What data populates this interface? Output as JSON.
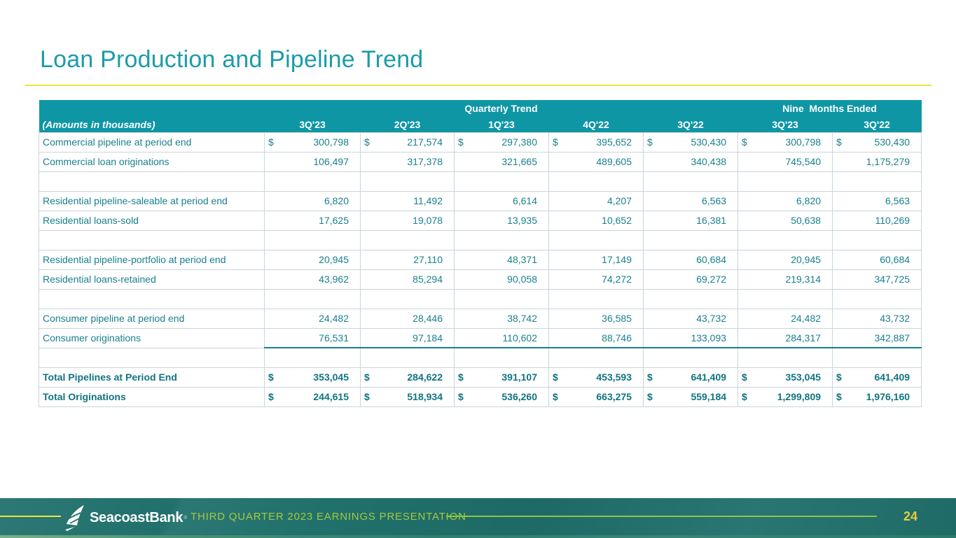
{
  "slide": {
    "title": "Loan Production and Pipeline Trend",
    "footer_caption": "THIRD QUARTER 2023 EARNINGS PRESENTATION",
    "logo_text": "SeacoastBank",
    "logo_reg_mark": "®",
    "page_number": "24"
  },
  "colors": {
    "accent_teal": "#1B9CA9",
    "header_bg": "#0E96A5",
    "table_text": "#19808E",
    "table_border": "#C9D5DB",
    "rule_yellow": "#E6E73B",
    "footer_bg": "#20706C",
    "footer_line_green": "#8FC63F",
    "caption_green": "#A5C93C",
    "page_number_yellow": "#E7CE3E"
  },
  "table": {
    "note": "(Amounts in thousands)",
    "group_headers": [
      {
        "label": "Quarterly Trend",
        "span": 5
      },
      {
        "label": "Nine  Months Ended",
        "span": 2
      }
    ],
    "columns": [
      "3Q'23",
      "2Q'23",
      "1Q'23",
      "4Q'22",
      "3Q'22",
      "3Q'23",
      "3Q'22"
    ],
    "rows": [
      {
        "label": "Commercial pipeline at period end",
        "dollar": true,
        "values": [
          "300,798",
          "217,574",
          "297,380",
          "395,652",
          "530,430",
          "300,798",
          "530,430"
        ]
      },
      {
        "label": "Commercial loan originations",
        "values": [
          "106,497",
          "317,378",
          "321,665",
          "489,605",
          "340,438",
          "745,540",
          "1,175,279"
        ]
      },
      {
        "empty": true
      },
      {
        "label": "Residential pipeline-saleable at period end",
        "values": [
          "6,820",
          "11,492",
          "6,614",
          "4,207",
          "6,563",
          "6,820",
          "6,563"
        ]
      },
      {
        "label": "Residential loans-sold",
        "values": [
          "17,625",
          "19,078",
          "13,935",
          "10,652",
          "16,381",
          "50,638",
          "110,269"
        ]
      },
      {
        "empty": true
      },
      {
        "label": "Residential pipeline-portfolio at period end",
        "values": [
          "20,945",
          "27,110",
          "48,371",
          "17,149",
          "60,684",
          "20,945",
          "60,684"
        ]
      },
      {
        "label": "Residential loans-retained",
        "values": [
          "43,962",
          "85,294",
          "90,058",
          "74,272",
          "69,272",
          "219,314",
          "347,725"
        ]
      },
      {
        "empty": true
      },
      {
        "label": "Consumer pipeline at period end",
        "values": [
          "24,482",
          "28,446",
          "38,742",
          "36,585",
          "43,732",
          "24,482",
          "43,732"
        ]
      },
      {
        "label": "Consumer originations",
        "rule_below": true,
        "values": [
          "76,531",
          "97,184",
          "110,602",
          "88,746",
          "133,093",
          "284,317",
          "342,887"
        ]
      },
      {
        "empty": true
      },
      {
        "label": "Total Pipelines at Period End",
        "dollar": true,
        "bold": true,
        "values": [
          "353,045",
          "284,622",
          "391,107",
          "453,593",
          "641,409",
          "353,045",
          "641,409"
        ]
      },
      {
        "label": "Total Originations",
        "dollar": true,
        "bold": true,
        "values": [
          "244,615",
          "518,934",
          "536,260",
          "663,275",
          "559,184",
          "1,299,809",
          "1,976,160"
        ]
      }
    ]
  },
  "chart_data": {
    "type": "table",
    "title": "Loan Production and Pipeline Trend",
    "units": "Amounts in thousands",
    "column_groups": [
      "Quarterly Trend (3Q'23, 2Q'23, 1Q'23, 4Q'22, 3Q'22)",
      "Nine Months Ended (3Q'23, 3Q'22)"
    ],
    "columns": [
      "3Q'23",
      "2Q'23",
      "1Q'23",
      "4Q'22",
      "3Q'22",
      "3Q'23 9M",
      "3Q'22 9M"
    ],
    "series": [
      {
        "name": "Commercial pipeline at period end",
        "values": [
          300798,
          217574,
          297380,
          395652,
          530430,
          300798,
          530430
        ]
      },
      {
        "name": "Commercial loan originations",
        "values": [
          106497,
          317378,
          321665,
          489605,
          340438,
          745540,
          1175279
        ]
      },
      {
        "name": "Residential pipeline-saleable at period end",
        "values": [
          6820,
          11492,
          6614,
          4207,
          6563,
          6820,
          6563
        ]
      },
      {
        "name": "Residential loans-sold",
        "values": [
          17625,
          19078,
          13935,
          10652,
          16381,
          50638,
          110269
        ]
      },
      {
        "name": "Residential pipeline-portfolio at period end",
        "values": [
          20945,
          27110,
          48371,
          17149,
          60684,
          20945,
          60684
        ]
      },
      {
        "name": "Residential loans-retained",
        "values": [
          43962,
          85294,
          90058,
          74272,
          69272,
          219314,
          347725
        ]
      },
      {
        "name": "Consumer pipeline at period end",
        "values": [
          24482,
          28446,
          38742,
          36585,
          43732,
          24482,
          43732
        ]
      },
      {
        "name": "Consumer originations",
        "values": [
          76531,
          97184,
          110602,
          88746,
          133093,
          284317,
          342887
        ]
      },
      {
        "name": "Total Pipelines at Period End",
        "values": [
          353045,
          284622,
          391107,
          453593,
          641409,
          353045,
          641409
        ]
      },
      {
        "name": "Total Originations",
        "values": [
          244615,
          518934,
          536260,
          663275,
          559184,
          1299809,
          1976160
        ]
      }
    ]
  }
}
